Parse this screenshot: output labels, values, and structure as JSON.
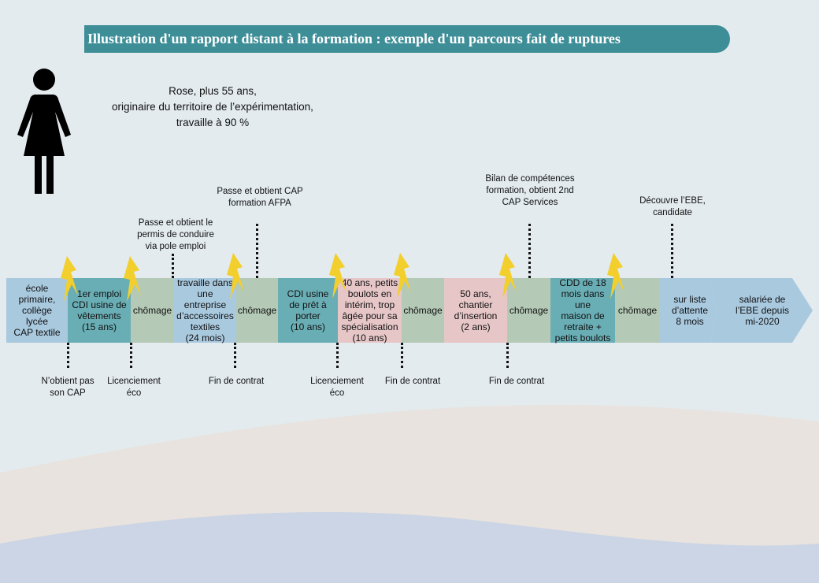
{
  "title": "Illustration d'un rapport distant à la formation : exemple d'un parcours fait de ruptures",
  "persona": {
    "icon": "woman-icon",
    "line1": "Rose, plus 55 ans,",
    "line2": "originaire du territoire de l’expérimentation,",
    "line3": "travaille à 90 %"
  },
  "colors": {
    "title_bg": "#3e8e98",
    "blue": "#a9c9df",
    "teal": "#6aaeb5",
    "green": "#b4c9b6",
    "pink": "#e6c6c7",
    "bolt": "#f2cf2c"
  },
  "timeline": [
    {
      "text": "école primaire,\ncollège\nlycée\nCAP textile",
      "color": "blue"
    },
    {
      "text": "1er emploi\nCDI usine de\nvêtements\n(15 ans)",
      "color": "teal"
    },
    {
      "text": "chômage",
      "color": "green"
    },
    {
      "text": "travaille dans\nune\nentreprise\nd’accessoires\ntextiles\n(24 mois)",
      "color": "blue"
    },
    {
      "text": "chômage",
      "color": "green"
    },
    {
      "text": "CDI usine\nde prêt à\nporter\n(10 ans)",
      "color": "teal"
    },
    {
      "text": "40 ans, petits\nboulots en\nintérim, trop\nâgée pour sa\nspécialisation\n(10 ans)",
      "color": "pink"
    },
    {
      "text": "chômage",
      "color": "green"
    },
    {
      "text": "50 ans,\nchantier\nd’insertion\n(2 ans)",
      "color": "pink"
    },
    {
      "text": "chômage",
      "color": "green"
    },
    {
      "text": "CDD de 18\nmois dans une\nmaison de\nretraite +\npetits boulots",
      "color": "teal"
    },
    {
      "text": "chômage",
      "color": "green"
    },
    {
      "text": "sur liste\nd’attente\n8 mois",
      "color": "blue"
    },
    {
      "text": "salariée de\nl’EBE depuis\nmi-2020",
      "color": "blue"
    }
  ],
  "events_above": [
    "Passe et obtient le\npermis de conduire\nvia pole emploi",
    "Passe et obtient CAP\nformation AFPA",
    "Bilan de compétences\nformation, obtient 2nd\nCAP Services",
    "Découvre l’EBE,\ncandidate"
  ],
  "events_below": [
    "N’obtient pas\nson CAP",
    "Licenciement\néco",
    "Fin de contrat",
    "Licenciement\néco",
    "Fin de contrat",
    "Fin de contrat"
  ]
}
